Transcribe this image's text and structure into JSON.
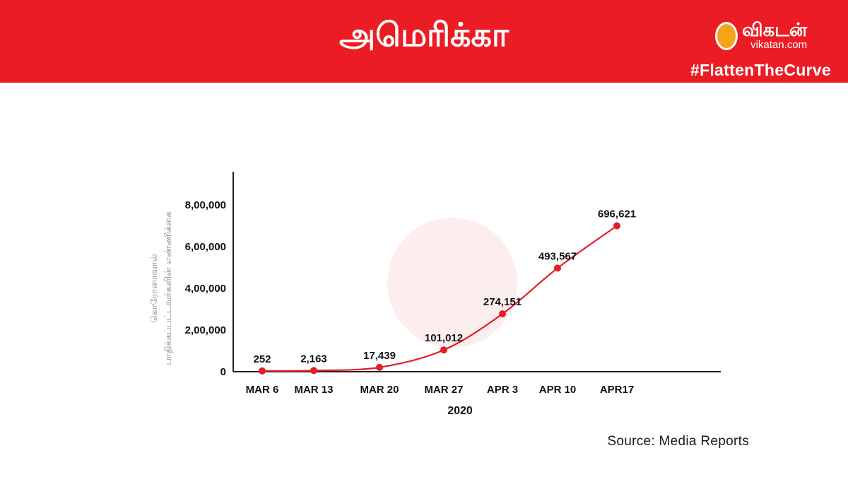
{
  "header": {
    "title": "அமெரிக்கா",
    "logo_name": "விகடன்",
    "logo_url": "vikatan.com",
    "hashtag": "#FlattenTheCurve",
    "color": "#ec1c24"
  },
  "chart_data": {
    "type": "line",
    "title": "",
    "xlabel": "2020",
    "ylabel": "கொரோனாவால் பாதிக்கப்பட்டவர்களின் எண்ணிக்கை",
    "categories": [
      "MAR 6",
      "MAR 13",
      "MAR 20",
      "MAR 27",
      "APR 3",
      "APR 10",
      "APR17"
    ],
    "series": [
      {
        "values": [
          252,
          2163,
          17439,
          101012,
          274151,
          493567,
          696621
        ],
        "labels": [
          "252",
          "2,163",
          "17,439",
          "101,012",
          "274,151",
          "493,567",
          "696,621"
        ],
        "color": "#e41e26"
      }
    ],
    "ylim": [
      0,
      900000
    ],
    "yticks": [
      0,
      200000,
      400000,
      600000,
      800000
    ],
    "ytick_labels": [
      "0",
      "2,00,000",
      "4,00,000",
      "6,00,000",
      "8,00,000"
    ],
    "grid": false,
    "legend": "none"
  },
  "source": "Source: Media Reports"
}
